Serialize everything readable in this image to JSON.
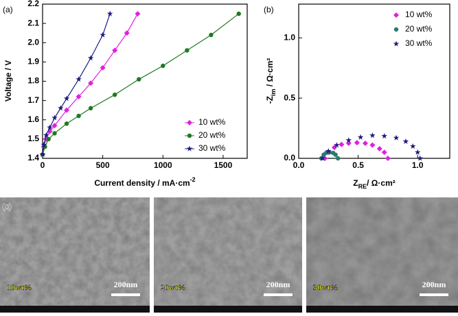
{
  "chart_data": [
    {
      "type": "line",
      "panel_label": "(a)",
      "xlabel": [
        {
          "text": "Current density / mA·cm"
        },
        {
          "text": "-2",
          "sup": true
        }
      ],
      "ylabel": [
        {
          "text": "Voltage / V"
        }
      ],
      "xlim": [
        0,
        1700
      ],
      "ylim": [
        1.4,
        2.2
      ],
      "xticks": [
        0,
        500,
        1000,
        1500
      ],
      "yticks": [
        1.4,
        1.5,
        1.6,
        1.7,
        1.8,
        1.9,
        {
          "value": 2,
          "label": "2.0"
        },
        2.1,
        2.2
      ],
      "legend": "lower right",
      "series": [
        {
          "name": "10 wt%",
          "color": "#e020e0",
          "marker": "diamond",
          "x": [
            0,
            10,
            30,
            60,
            100,
            200,
            300,
            400,
            500,
            600,
            700,
            790
          ],
          "values": [
            1.42,
            1.46,
            1.5,
            1.54,
            1.57,
            1.65,
            1.72,
            1.79,
            1.87,
            1.96,
            2.05,
            2.15
          ]
        },
        {
          "name": "20 wt%",
          "color": "#1f7a1f",
          "marker": "circle",
          "x": [
            0,
            20,
            50,
            100,
            200,
            300,
            400,
            600,
            800,
            1000,
            1200,
            1400,
            1630
          ],
          "values": [
            1.42,
            1.46,
            1.5,
            1.53,
            1.58,
            1.62,
            1.66,
            1.73,
            1.81,
            1.88,
            1.96,
            2.04,
            2.15
          ]
        },
        {
          "name": "30 wt%",
          "color": "#1c1c80",
          "marker": "star",
          "x": [
            0,
            10,
            30,
            60,
            100,
            150,
            200,
            300,
            400,
            500,
            560
          ],
          "values": [
            1.42,
            1.47,
            1.52,
            1.56,
            1.61,
            1.66,
            1.71,
            1.81,
            1.92,
            2.04,
            2.15
          ]
        }
      ]
    },
    {
      "type": "scatter",
      "panel_label": "(b)",
      "xlabel": [
        {
          "text": "Z"
        },
        {
          "text": "RE",
          "sub": true
        },
        {
          "text": "/  Ω·cm²"
        }
      ],
      "ylabel": [
        {
          "text": "-Z"
        },
        {
          "text": "im",
          "sub": true
        },
        {
          "text": "  /  Ω·cm²"
        }
      ],
      "xlim": [
        0,
        1.27
      ],
      "ylim": [
        0,
        1.28
      ],
      "xticks": [
        {
          "value": 0,
          "label": "0.0"
        },
        0.5,
        {
          "value": 1,
          "label": "1.0"
        }
      ],
      "yticks": [
        {
          "value": 0,
          "label": "0.0"
        },
        0.5,
        {
          "value": 1,
          "label": "1.0"
        }
      ],
      "legend": "upper right",
      "series": [
        {
          "name": "10 wt%",
          "color": "#e020e0",
          "marker": "diamond",
          "x": [
            0.22,
            0.25,
            0.3,
            0.36,
            0.42,
            0.49,
            0.56,
            0.62,
            0.68,
            0.72,
            0.75
          ],
          "values": [
            0,
            0.05,
            0.09,
            0.115,
            0.125,
            0.13,
            0.125,
            0.11,
            0.08,
            0.05,
            0
          ]
        },
        {
          "name": "20 wt%",
          "color": "#2a7a70",
          "marker": "circle",
          "x": [
            0.19,
            0.21,
            0.23,
            0.26,
            0.29,
            0.31,
            0.33
          ],
          "values": [
            0,
            0.03,
            0.045,
            0.05,
            0.045,
            0.03,
            0
          ]
        },
        {
          "name": "30 wt%",
          "color": "#1c1c80",
          "marker": "star",
          "x": [
            0.2,
            0.25,
            0.32,
            0.42,
            0.52,
            0.62,
            0.72,
            0.82,
            0.9,
            0.96,
            1,
            1.02
          ],
          "values": [
            0,
            0.06,
            0.11,
            0.15,
            0.175,
            0.19,
            0.185,
            0.17,
            0.14,
            0.1,
            0.05,
            0
          ]
        }
      ]
    }
  ],
  "sem_panel": {
    "panel_label": "(c)",
    "images": [
      {
        "label": "10wt%",
        "scale": "200nm"
      },
      {
        "label": "20wt%",
        "scale": "200nm"
      },
      {
        "label": "30wt%",
        "scale": "200nm"
      }
    ]
  }
}
